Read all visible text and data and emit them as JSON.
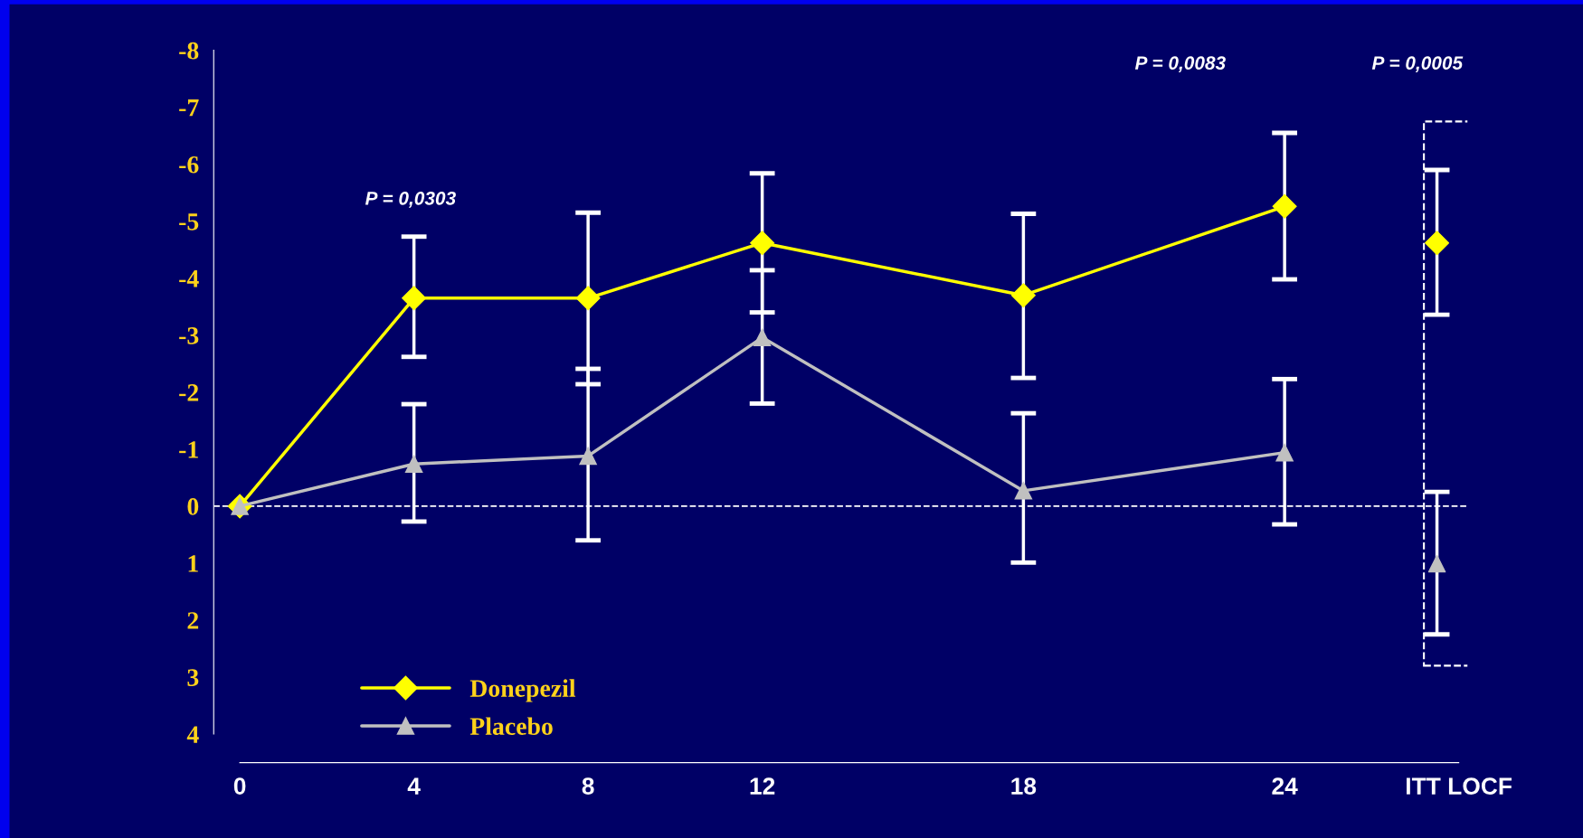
{
  "chart_data": {
    "type": "line",
    "x": [
      0,
      4,
      8,
      12,
      18,
      24
    ],
    "xlim": [
      -0.6,
      28.2
    ],
    "xticks": [
      0,
      4,
      8,
      12,
      18,
      24,
      {
        "value": 28,
        "label": "ITT LOCF"
      }
    ],
    "ylim": [
      4.5,
      -8
    ],
    "yticks": [
      -8,
      -7,
      -6,
      -5,
      -4,
      -3,
      -2,
      -1,
      0,
      1,
      2,
      3,
      4
    ],
    "series": [
      {
        "name": "Donepezil",
        "color": "#ffff00",
        "marker": "diamond",
        "values": [
          0,
          -3.65,
          -3.65,
          -4.62,
          -3.7,
          -5.26
        ],
        "errors": [
          null,
          [
            -4.73,
            -2.62
          ],
          [
            -5.15,
            -2.14
          ],
          [
            -5.84,
            -3.4
          ],
          [
            -5.13,
            -2.25
          ],
          [
            -6.55,
            -3.98
          ]
        ]
      },
      {
        "name": "Placebo",
        "color": "#c0c0c0",
        "marker": "triangle",
        "values": [
          0,
          -0.74,
          -0.88,
          -2.96,
          -0.27,
          -0.94
        ],
        "errors": [
          null,
          [
            -1.79,
            0.27
          ],
          [
            -2.41,
            0.6
          ],
          [
            -4.14,
            -1.8
          ],
          [
            -1.63,
            0.99
          ],
          [
            -2.23,
            0.32
          ]
        ]
      },
      {
        "type": "scatter",
        "color": "#ffff00",
        "marker": "diamond",
        "x": [
          27.5
        ],
        "values": [
          -4.62
        ],
        "errors": [
          [
            -5.9,
            -3.36
          ]
        ]
      },
      {
        "type": "scatter",
        "color": "#c0c0c0",
        "marker": "triangle",
        "x": [
          27.5
        ],
        "values": [
          1.01
        ],
        "errors": [
          [
            -0.25,
            2.25
          ]
        ]
      }
    ],
    "ref_lines": [
      {
        "axis": "y",
        "value": 0,
        "color": "#ffffff",
        "line_style": "dashed"
      }
    ],
    "annotations": [
      "P = 0,0303",
      "P = 0,0083",
      "P = 0,0005"
    ],
    "legend": "bottom left",
    "grid": false
  }
}
